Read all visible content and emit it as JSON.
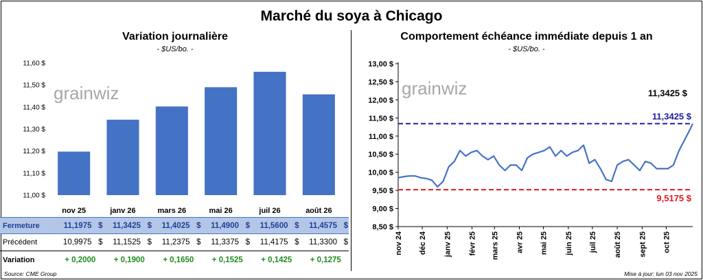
{
  "title": "Marché du soya à Chicago",
  "watermark": "grainwiz",
  "colors": {
    "bar": "#4472c4",
    "line": "#4472c4",
    "high_line": "#1a1aa6",
    "low_line": "#e0191f",
    "variation": "#1e8c1e",
    "table_header_bg": "#b4c6e7"
  },
  "left_chart": {
    "title": "Variation journalière",
    "unit": "- $US/bo. -"
  },
  "right_chart": {
    "title": "Comportement échéance immédiate depuis 1 an",
    "unit": "- $US/bo. -"
  },
  "table": {
    "labels": {
      "fermeture": "Fermeture",
      "precedent": "Précédent",
      "variation": "Variation"
    },
    "currency": "$",
    "fermeture": [
      "11,1975",
      "11,3425",
      "11,4025",
      "11,4900",
      "11,5600",
      "11,4575"
    ],
    "precedent": [
      "10,9975",
      "11,1525",
      "11,2375",
      "11,3375",
      "11,4175",
      "11,3300"
    ],
    "variation": [
      "+ 0,2000",
      "+ 0,1900",
      "+ 0,1650",
      "+ 0,1525",
      "+ 0,1425",
      "+ 0,1275"
    ]
  },
  "footer": {
    "source": "Source: CME Group",
    "updated": "Mise à jour: lun 03 nov 2025"
  },
  "chart_data": [
    {
      "type": "bar",
      "categories": [
        "nov 25",
        "janv 26",
        "mars 26",
        "mai 26",
        "juil 26",
        "août 26"
      ],
      "values": [
        11.1975,
        11.3425,
        11.4025,
        11.49,
        11.56,
        11.4575
      ],
      "title": "Variation journalière",
      "ylabel": "$US/bo.",
      "ylim": [
        11.0,
        11.6
      ],
      "yticks": [
        "11,00 $",
        "11,10 $",
        "11,20 $",
        "11,30 $",
        "11,40 $",
        "11,50 $",
        "11,60 $"
      ],
      "grid": false
    },
    {
      "type": "line",
      "title": "Comportement échéance immédiate depuis 1 an",
      "ylabel": "$US/bo.",
      "ylim": [
        8.5,
        13.0
      ],
      "yticks": [
        "8,50 $",
        "9,00 $",
        "9,50 $",
        "10,00 $",
        "10,50 $",
        "11,00 $",
        "11,50 $",
        "12,00 $",
        "12,50 $",
        "13,00 $"
      ],
      "xticks": [
        "nov 24",
        "déc 24",
        "janv 25",
        "févr 25",
        "mars 25",
        "avr 25",
        "mai 25",
        "juin 25",
        "juil 25",
        "août 25",
        "sept 25",
        "oct 25"
      ],
      "x": [
        "2024-11-01",
        "2024-11-08",
        "2024-11-15",
        "2024-11-22",
        "2024-11-29",
        "2024-12-06",
        "2024-12-13",
        "2024-12-20",
        "2024-12-27",
        "2025-01-03",
        "2025-01-10",
        "2025-01-17",
        "2025-01-24",
        "2025-01-31",
        "2025-02-07",
        "2025-02-14",
        "2025-02-21",
        "2025-02-28",
        "2025-03-07",
        "2025-03-14",
        "2025-03-21",
        "2025-03-28",
        "2025-04-04",
        "2025-04-11",
        "2025-04-18",
        "2025-04-25",
        "2025-05-02",
        "2025-05-09",
        "2025-05-16",
        "2025-05-23",
        "2025-05-30",
        "2025-06-06",
        "2025-06-13",
        "2025-06-20",
        "2025-06-27",
        "2025-07-04",
        "2025-07-11",
        "2025-07-18",
        "2025-07-25",
        "2025-08-01",
        "2025-08-08",
        "2025-08-15",
        "2025-08-22",
        "2025-08-29",
        "2025-09-05",
        "2025-09-12",
        "2025-09-19",
        "2025-09-26",
        "2025-10-03",
        "2025-10-10",
        "2025-10-17",
        "2025-10-24",
        "2025-10-31",
        "2025-11-03"
      ],
      "series": [
        {
          "values": [
            9.85,
            9.88,
            9.9,
            9.9,
            9.85,
            9.83,
            9.78,
            9.6,
            9.75,
            10.15,
            10.3,
            10.6,
            10.45,
            10.55,
            10.6,
            10.45,
            10.35,
            10.45,
            10.2,
            10.05,
            10.2,
            10.2,
            10.05,
            10.4,
            10.5,
            10.55,
            10.6,
            10.7,
            10.45,
            10.6,
            10.45,
            10.55,
            10.6,
            10.75,
            10.25,
            10.35,
            10.1,
            9.8,
            9.75,
            10.2,
            10.3,
            10.35,
            10.2,
            10.05,
            10.3,
            10.25,
            10.1,
            10.1,
            10.1,
            10.2,
            10.6,
            10.9,
            11.2,
            11.3425
          ]
        }
      ],
      "reference_lines": [
        {
          "label": "11,3425 $",
          "value": 11.3425
        },
        {
          "label": "9,5175 $",
          "value": 9.5175
        }
      ],
      "last_value_label": "11,3425 $",
      "grid": false
    }
  ]
}
